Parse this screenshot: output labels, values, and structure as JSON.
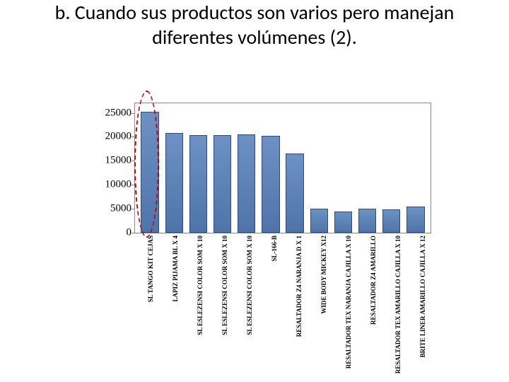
{
  "title": "b. Cuando sus productos son varios pero manejan diferentes volúmenes (2).",
  "chart": {
    "type": "bar",
    "ymax": 27000,
    "yticks": [
      0,
      5000,
      10000,
      15000,
      20000,
      25000
    ],
    "bar_fill_top": "#6d91c3",
    "bar_fill_bottom": "#4f74aa",
    "bar_border": "#2f4a77",
    "plot_border": "#888888",
    "background": "#ffffff",
    "categories": [
      "SL TANGO KIT CEJAS",
      "LAPIZ PIJAMA BL X 4",
      "SL ESLEZENSI COLOR SOM X 10",
      "SL ESLEZENSI COLOR SOM X 10",
      "SL ESLEZENSI COLOR SOM X 10",
      "SL-166-B",
      "RESALTADOR Z4 NARANJA D X 1",
      "WIDE BODY MICKEY X12",
      "RESALTADOR TEX NARANJA CAJILLA X 10",
      "RESALTADOR Z4 AMARILLO",
      "RESALTADOR TEX AMARILLO CAJILLA X 10",
      "BRITE LINER AMARILLO CAJILLA X 12"
    ],
    "values": [
      25200,
      20800,
      20400,
      20400,
      20500,
      20200,
      16600,
      5000,
      4500,
      5000,
      4800,
      5400
    ],
    "highlight": {
      "bar_index": 0,
      "ellipse_color": "#c00000",
      "ellipse_dash": "3,3"
    },
    "tick_fontsize": 15,
    "xlabel_fontsize": 9,
    "xlabel_fontweight": "bold",
    "xlabel_rotation": -90
  }
}
